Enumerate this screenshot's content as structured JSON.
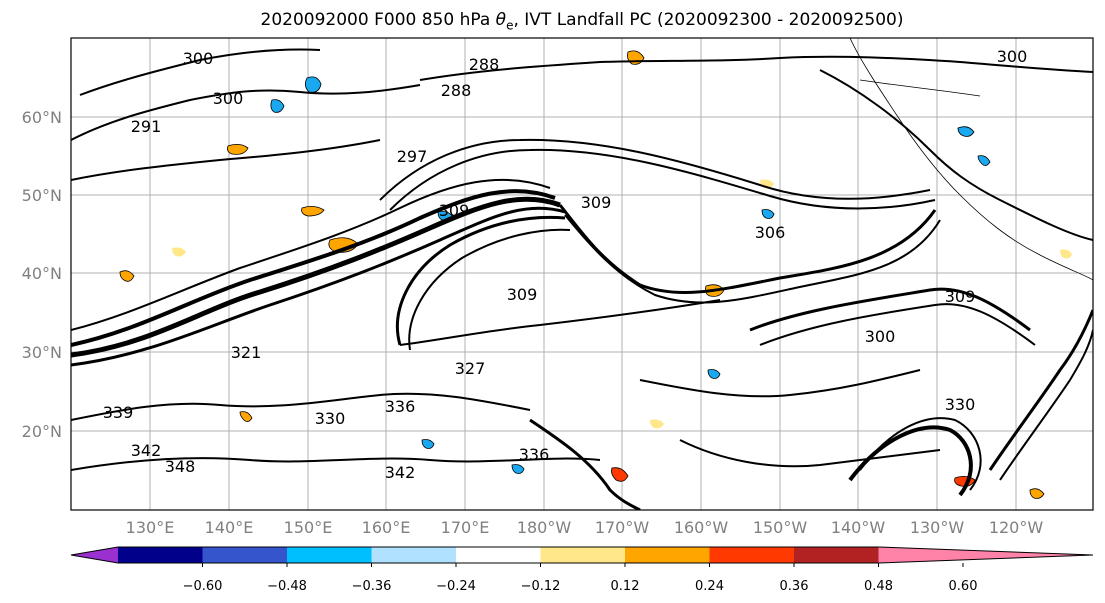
{
  "title": {
    "prefix": "2020092000 F000 850 hPa ",
    "theta": "θ",
    "sub": "e",
    "suffix": ", IVT Landfall PC (2020092300 - 2020092500)"
  },
  "lat_labels": [
    "60°N",
    "50°N",
    "40°N",
    "30°N",
    "20°N"
  ],
  "lon_labels": [
    "130°E",
    "140°E",
    "150°E",
    "160°E",
    "170°E",
    "180°W",
    "170°W",
    "160°W",
    "150°W",
    "140°W",
    "130°W",
    "120°W"
  ],
  "contour_labels": [
    "300",
    "300",
    "288",
    "291",
    "297",
    "288",
    "300",
    "309",
    "309",
    "306",
    "309",
    "300",
    "309",
    "321",
    "327",
    "336",
    "342",
    "330",
    "339",
    "342",
    "336",
    "348",
    "330"
  ],
  "colorbar": {
    "tick_labels": [
      "−0.60",
      "−0.48",
      "−0.36",
      "−0.24",
      "−0.12",
      "0.12",
      "0.24",
      "0.36",
      "0.48",
      "0.60"
    ],
    "colors": [
      "#9b30d0",
      "#00008b",
      "#3555cc",
      "#00bfff",
      "#b0e2ff",
      "#ffffff",
      "#ffe78a",
      "#ffa500",
      "#ff3a00",
      "#b22222",
      "#ff83a8"
    ]
  },
  "shading_colors": {
    "blue": "#1aa8f0",
    "light_blue": "#b0e2ff",
    "orange": "#ffa500",
    "yellow": "#ffe78a",
    "red": "#ff3a00"
  }
}
